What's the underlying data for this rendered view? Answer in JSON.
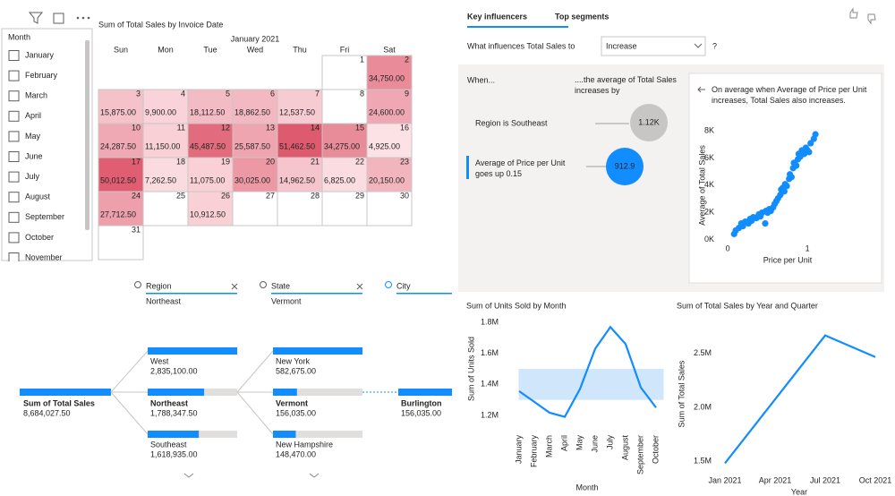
{
  "slicer": {
    "title": "Month",
    "items": [
      "January",
      "February",
      "March",
      "April",
      "May",
      "June",
      "July",
      "August",
      "September",
      "October",
      "November"
    ]
  },
  "calendar": {
    "title": "Sum of Total Sales by Invoice Date",
    "month": "January 2021",
    "weekdays": [
      "Sun",
      "Mon",
      "Tue",
      "Wed",
      "Thu",
      "Fri",
      "Sat"
    ],
    "days": [
      {
        "day": 1,
        "value": null
      },
      {
        "day": 2,
        "value": "34,750.00"
      },
      {
        "day": 3,
        "value": "15,875.00"
      },
      {
        "day": 4,
        "value": "9,900.00"
      },
      {
        "day": 5,
        "value": "18,112.50"
      },
      {
        "day": 6,
        "value": "18,862.50"
      },
      {
        "day": 7,
        "value": "12,537.50"
      },
      {
        "day": 8,
        "value": null
      },
      {
        "day": 9,
        "value": "24,600.00"
      },
      {
        "day": 10,
        "value": "24,287.50"
      },
      {
        "day": 11,
        "value": "11,150.00"
      },
      {
        "day": 12,
        "value": "45,487.50"
      },
      {
        "day": 13,
        "value": "25,587.50"
      },
      {
        "day": 14,
        "value": "51,462.50"
      },
      {
        "day": 15,
        "value": "34,275.00"
      },
      {
        "day": 16,
        "value": "4,925.00"
      },
      {
        "day": 17,
        "value": "50,012.50"
      },
      {
        "day": 18,
        "value": "7,262.50"
      },
      {
        "day": 19,
        "value": "11,075.00"
      },
      {
        "day": 20,
        "value": "30,025.00"
      },
      {
        "day": 21,
        "value": "14,962.50"
      },
      {
        "day": 22,
        "value": "6,825.00"
      },
      {
        "day": 23,
        "value": "20,150.00"
      },
      {
        "day": 24,
        "value": "27,712.50"
      },
      {
        "day": 25,
        "value": null
      },
      {
        "day": 26,
        "value": "10,912.50"
      },
      {
        "day": 27,
        "value": null
      },
      {
        "day": 28,
        "value": null
      },
      {
        "day": 29,
        "value": null
      },
      {
        "day": 30,
        "value": null
      },
      {
        "day": 31,
        "value": null
      }
    ]
  },
  "decomposition": {
    "levels": [
      {
        "field": "Region",
        "filter": "Northeast"
      },
      {
        "field": "State",
        "filter": "Vermont"
      },
      {
        "field": "City"
      }
    ],
    "root": {
      "label": "Sum of Total Sales",
      "value": "8,684,027.50"
    },
    "nodes": [
      [
        {
          "label": "West",
          "value": "2,835,100.00"
        },
        {
          "label": "Northeast",
          "value": "1,788,347.50"
        },
        {
          "label": "Southeast",
          "value": "1,618,935.00"
        }
      ],
      [
        {
          "label": "New York",
          "value": "582,675.00"
        },
        {
          "label": "Vermont",
          "value": "156,035.00"
        },
        {
          "label": "New Hampshire",
          "value": "148,470.00"
        }
      ],
      [
        null,
        {
          "label": "Burlington",
          "value": "156,035.00"
        },
        null
      ]
    ]
  },
  "influencers": {
    "tabs": [
      "Key influencers",
      "Top segments"
    ],
    "question": "What influences Total Sales to",
    "dropdown": "Increase",
    "help": "?",
    "when": "When...",
    "then": "....the average of Total Sales increases by",
    "factors": [
      {
        "label": "Region is Southeast",
        "value": "1.12K"
      },
      {
        "label": "Average of Price per Unit goes up 0.15",
        "value": "912.9"
      }
    ],
    "detail": "On average when Average of Price per Unit increases, Total Sales also increases."
  },
  "chart_data": [
    {
      "type": "scatter",
      "x_label": "Price per Unit",
      "y_label": "Average of Total Sales",
      "color": "#118DFF",
      "x": [
        0.08,
        0.1,
        0.14,
        0.17,
        0.19,
        0.22,
        0.26,
        0.28,
        0.3,
        0.32,
        0.36,
        0.39,
        0.41,
        0.43,
        0.47,
        0.48,
        0.5,
        0.52,
        0.54,
        0.57,
        0.59,
        0.61,
        0.63,
        0.66,
        0.67,
        0.69,
        0.71,
        0.72,
        0.74,
        0.77,
        0.78,
        0.8,
        0.82,
        0.83,
        0.86,
        0.88,
        0.89,
        0.91,
        0.93,
        0.96,
        0.98,
        1.0,
        1.02,
        1.04,
        1.08,
        1.1
      ],
      "values": [
        400,
        660,
        850,
        1180,
        980,
        1310,
        1180,
        1510,
        1380,
        1640,
        1570,
        1840,
        1700,
        1970,
        1180,
        2100,
        1970,
        2230,
        2100,
        2360,
        2620,
        2820,
        3020,
        3280,
        3670,
        3800,
        3540,
        4070,
        3930,
        4460,
        4790,
        4590,
        5250,
        5640,
        5440,
        5900,
        6300,
        6100,
        6560,
        6300,
        6750,
        6560,
        6430,
        7080,
        7410,
        7740
      ],
      "xlim": [
        -0.08,
        1.2
      ],
      "ylim": [
        -300,
        8400
      ],
      "xticks": [
        0,
        1
      ],
      "yticks": [
        {
          "value": 0,
          "label": "0K"
        },
        {
          "value": 2000,
          "label": "2K"
        },
        {
          "value": 4000,
          "label": "4K"
        },
        {
          "value": 6000,
          "label": "6K"
        },
        {
          "value": 8000,
          "label": "8K"
        }
      ]
    },
    {
      "type": "line",
      "title": "Sum of Units Sold by Month",
      "x_label": "Month",
      "y_label": "Sum of Units Sold",
      "color": "#118DFF",
      "categories": [
        "January",
        "February",
        "March",
        "April",
        "May",
        "June",
        "July",
        "August",
        "September",
        "October"
      ],
      "values": [
        1356000,
        1287000,
        1217000,
        1190000,
        1370000,
        1630000,
        1770000,
        1660000,
        1380000,
        1250000
      ],
      "band": [
        1300000,
        1500000
      ],
      "band_color": "#cfe6fb",
      "ylim": [
        1130000,
        1870000
      ],
      "yticks": [
        {
          "value": 1200000,
          "label": "1.2M"
        },
        {
          "value": 1400000,
          "label": "1.4M"
        },
        {
          "value": 1600000,
          "label": "1.6M"
        },
        {
          "value": 1800000,
          "label": "1.8M"
        }
      ]
    },
    {
      "type": "line",
      "title": "Sum of Total Sales by Year and Quarter",
      "x_label": "Year",
      "y_label": "Sum of Total Sales",
      "color": "#118DFF",
      "categories": [
        "Jan 2021",
        "Apr 2021",
        "Jul 2021",
        "Oct 2021"
      ],
      "values": [
        1483000,
        2075000,
        2667000,
        2467000
      ],
      "ylim": [
        1420000,
        2830000
      ],
      "yticks": [
        {
          "value": 1500000,
          "label": "1.5M"
        },
        {
          "value": 2000000,
          "label": "2.0M"
        },
        {
          "value": 2500000,
          "label": "2.5M"
        }
      ]
    }
  ]
}
